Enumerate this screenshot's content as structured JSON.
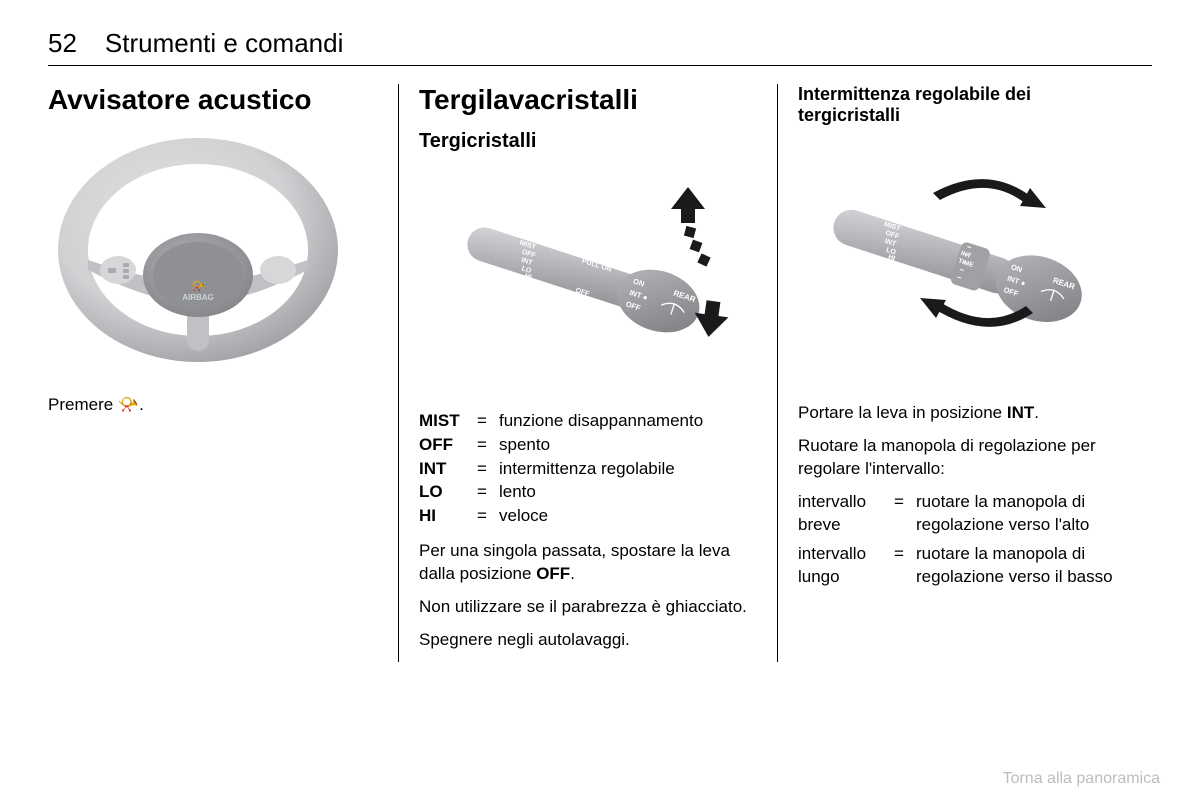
{
  "page_number": "52",
  "chapter_title": "Strumenti e comandi",
  "col1": {
    "heading": "Avvisatore acustico",
    "caption_prefix": "Premere ",
    "caption_suffix": ".",
    "horn_icon": "📢"
  },
  "col2": {
    "heading": "Tergilavacristalli",
    "subheading": "Tergicristalli",
    "defs": [
      {
        "k": "MIST",
        "v": "funzione disappannamento"
      },
      {
        "k": "OFF",
        "v": "spento"
      },
      {
        "k": "INT",
        "v": "intermittenza regolabile"
      },
      {
        "k": "LO",
        "v": "lento"
      },
      {
        "k": "HI",
        "v": "veloce"
      }
    ],
    "p1_a": "Per una singola passata, spostare la leva dalla posizione ",
    "p1_bold": "OFF",
    "p1_b": ".",
    "p2": "Non utilizzare se il parabrezza è ghiacciato.",
    "p3": "Spegnere negli autolavaggi."
  },
  "col3": {
    "heading": "Intermittenza regolabile dei tergicristalli",
    "p1_a": "Portare la leva in posizione ",
    "p1_bold": "INT",
    "p1_b": ".",
    "p2": "Ruotare la manopola di regolazione per regolare l'intervallo:",
    "rows": [
      {
        "k": "intervallo breve",
        "v": "ruotare la manopola di regolazione verso l'alto"
      },
      {
        "k": "intervallo lungo",
        "v": "ruotare la manopola di regolazione verso il basso"
      }
    ]
  },
  "footer": "Torna alla panoramica",
  "colors": {
    "wheel_rim": "#cfd1d3",
    "wheel_rim_lo": "#a9abae",
    "hub": "#9fa1a4",
    "hub_dark": "#7e8083",
    "button_cluster": "#d6d7d9",
    "spoke": "#bfc1c4",
    "stalk_body": "#aeb0b4",
    "stalk_light": "#d3d5d8",
    "stalk_dark": "#8e9094",
    "knob": "#8e9094",
    "knob_hi": "#b6b8bc",
    "label_text": "#ffffff",
    "arrow": "#1a1a1a",
    "horn_label": "#d0d2d5"
  }
}
